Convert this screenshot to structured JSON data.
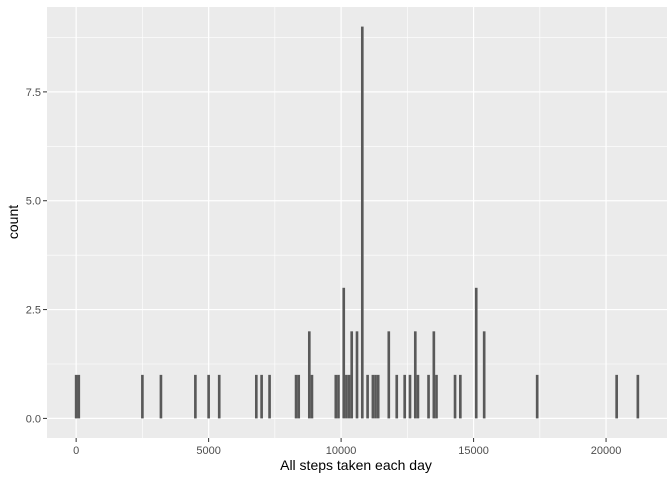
{
  "chart_data": {
    "type": "bar",
    "title": "",
    "xlabel": "All steps taken each day",
    "ylabel": "count",
    "xlim": [
      -1100,
      22300
    ],
    "ylim": [
      -0.45,
      9.45
    ],
    "xticks": [
      0,
      5000,
      10000,
      15000,
      20000
    ],
    "xtick_labels": [
      "0",
      "5000",
      "10000",
      "15000",
      "20000"
    ],
    "yticks": [
      0,
      2.5,
      5,
      7.5
    ],
    "ytick_labels": [
      "0.0",
      "2.5",
      "5.0",
      "7.5"
    ],
    "bin_width": 100,
    "grid": true,
    "panel_color": "#ebebeb",
    "bar_color": "#595959",
    "x": [
      0,
      100,
      2500,
      3200,
      4500,
      5000,
      5400,
      6800,
      7000,
      7300,
      8300,
      8400,
      8800,
      8900,
      9800,
      9900,
      10100,
      10200,
      10300,
      10400,
      10600,
      10800,
      11000,
      11200,
      11300,
      11400,
      11800,
      12100,
      12400,
      12600,
      12800,
      12900,
      13300,
      13500,
      13600,
      14300,
      14500,
      15100,
      15400,
      17400,
      20400,
      21200
    ],
    "values": [
      1,
      1,
      1,
      1,
      1,
      1,
      1,
      1,
      1,
      1,
      1,
      1,
      2,
      1,
      1,
      1,
      3,
      1,
      1,
      2,
      2,
      9,
      1,
      1,
      1,
      1,
      2,
      1,
      1,
      1,
      2,
      1,
      1,
      2,
      1,
      1,
      1,
      3,
      2,
      1,
      1,
      1
    ]
  }
}
